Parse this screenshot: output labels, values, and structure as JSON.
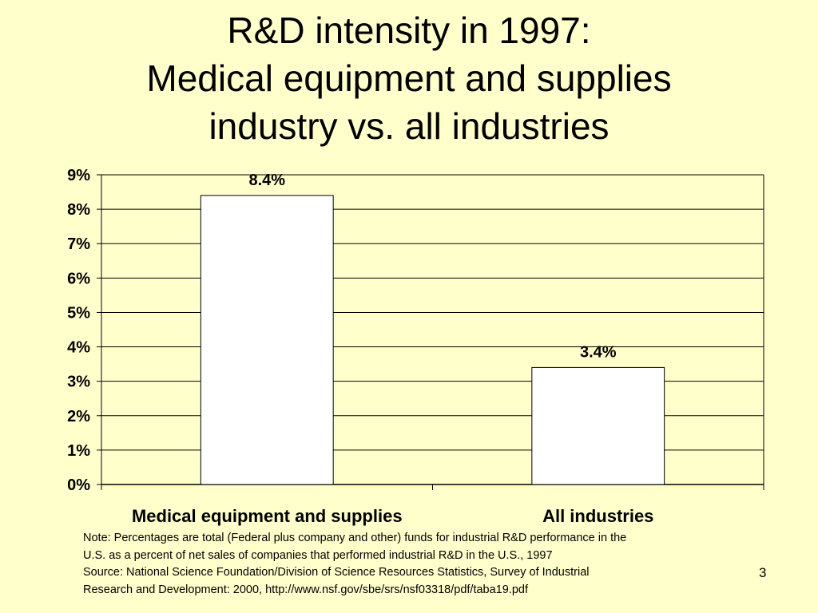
{
  "title_lines": [
    "R&D intensity in 1997:",
    "Medical equipment and supplies",
    "industry vs. all industries"
  ],
  "chart_data": {
    "type": "bar",
    "categories": [
      "Medical equipment and supplies",
      "All industries"
    ],
    "values": [
      8.4,
      3.4
    ],
    "data_labels": [
      "8.4%",
      "3.4%"
    ],
    "ylim": [
      0,
      9
    ],
    "yticks": [
      "0%",
      "1%",
      "2%",
      "3%",
      "4%",
      "5%",
      "6%",
      "7%",
      "8%",
      "9%"
    ],
    "grid": true,
    "legend": "none",
    "bar_color": "#ffffff",
    "background_color": "#ffffcc"
  },
  "note_lines": [
    "Note: Percentages are total (Federal plus company and other) funds for industrial R&D performance in the",
    "U.S. as a percent of net sales of companies that performed industrial R&D in the U.S., 1997",
    "Source: National Science Foundation/Division of Science Resources Statistics, Survey of Industrial",
    "Research and Development: 2000, http://www.nsf.gov/sbe/srs/nsf03318/pdf/taba19.pdf"
  ],
  "page_number": "3"
}
